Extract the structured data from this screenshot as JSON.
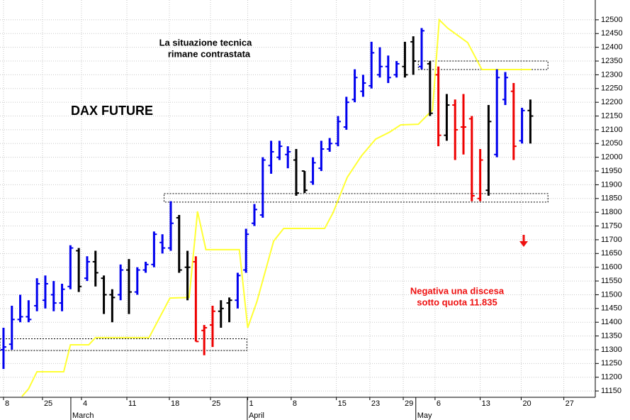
{
  "chart_data": {
    "type": "ohlc",
    "title": "DAX FUTURE",
    "note": [
      "La situazione tecnica",
      "rimane contrastata"
    ],
    "warning": [
      "Negativa una discesa",
      "sotto quota 11.835"
    ],
    "xlim": [
      -0.42,
      70.76
    ],
    "ylim": [
      11127,
      12572
    ],
    "yticks": [
      11150,
      11200,
      11250,
      11300,
      11350,
      11400,
      11450,
      11500,
      11550,
      11600,
      11650,
      11700,
      11750,
      11800,
      11850,
      11900,
      11950,
      12000,
      12050,
      12100,
      12150,
      12200,
      12250,
      12300,
      12350,
      12400,
      12450,
      12500
    ],
    "xticks": [
      {
        "value": 0,
        "label": "8"
      },
      {
        "value": 4.66,
        "label": "25"
      },
      {
        "value": 9.32,
        "label": "4"
      },
      {
        "value": 14.75,
        "label": "11"
      },
      {
        "value": 19.83,
        "label": "18"
      },
      {
        "value": 24.75,
        "label": "25"
      },
      {
        "value": 29.2,
        "label": "1"
      },
      {
        "value": 34.4,
        "label": "8"
      },
      {
        "value": 39.8,
        "label": "15"
      },
      {
        "value": 43.8,
        "label": "23"
      },
      {
        "value": 47.8,
        "label": "29"
      },
      {
        "value": 51.6,
        "label": "6"
      },
      {
        "value": 57,
        "label": "13"
      },
      {
        "value": 61.9,
        "label": "20"
      },
      {
        "value": 67,
        "label": "27"
      }
    ],
    "month_ticks": [
      {
        "value": 8.05,
        "label": "March"
      },
      {
        "value": 29.15,
        "label": "April"
      },
      {
        "value": 49.3,
        "label": "May"
      }
    ],
    "grid": true,
    "open": [
      11300,
      11320,
      11410,
      11420,
      11460,
      11480,
      11500,
      11470,
      11530,
      11660,
      11560,
      11620,
      11560,
      11500,
      11500,
      11590,
      11510,
      11590,
      11610,
      11690,
      11670,
      11780,
      11600,
      11620,
      11370,
      11390,
      11440,
      11470,
      11480,
      11590,
      11760,
      11790,
      11970,
      12000,
      12010,
      11990,
      11950,
      11910,
      11960,
      12030,
      12050,
      12110,
      12210,
      12240,
      12260,
      12300,
      12330,
      12300,
      12330,
      12420,
      12330,
      12340,
      12300,
      12080,
      12190,
      12110,
      12140,
      11850,
      11880,
      12010,
      12210,
      12240,
      12060,
      12170
    ],
    "high": [
      11380,
      11460,
      11500,
      11480,
      11560,
      11570,
      11550,
      11540,
      11680,
      11670,
      11640,
      11660,
      11570,
      11520,
      11610,
      11630,
      11600,
      11620,
      11730,
      11720,
      11840,
      11790,
      11660,
      11640,
      11390,
      11460,
      11480,
      11490,
      11580,
      11740,
      11830,
      12000,
      12060,
      12060,
      12040,
      12030,
      11950,
      12000,
      12060,
      12070,
      12150,
      12220,
      12320,
      12300,
      12420,
      12400,
      12370,
      12350,
      12420,
      12440,
      12470,
      12350,
      12330,
      12230,
      12210,
      12230,
      12150,
      12030,
      12190,
      12320,
      12310,
      12270,
      12180,
      12210
    ],
    "low": [
      11230,
      11300,
      11400,
      11400,
      11440,
      11450,
      11440,
      11440,
      11520,
      11510,
      11550,
      11530,
      11430,
      11400,
      11480,
      11430,
      11500,
      11580,
      11600,
      11650,
      11660,
      11580,
      11480,
      11330,
      11280,
      11310,
      11380,
      11400,
      11450,
      11580,
      11750,
      11780,
      11940,
      11990,
      11960,
      11860,
      11870,
      11900,
      11950,
      12020,
      12040,
      12100,
      12200,
      12220,
      12250,
      12290,
      12270,
      12290,
      12290,
      12300,
      12320,
      12150,
      12040,
      12060,
      11990,
      12010,
      11840,
      11840,
      11860,
      12000,
      12190,
      11990,
      12050,
      12050
    ],
    "close": [
      11310,
      11410,
      11420,
      11410,
      11540,
      11540,
      11470,
      11520,
      11670,
      11530,
      11620,
      11580,
      11500,
      11490,
      11590,
      11510,
      11590,
      11610,
      11720,
      11670,
      11760,
      11590,
      11600,
      11330,
      11380,
      11440,
      11450,
      11480,
      11570,
      11720,
      11810,
      11990,
      12020,
      12040,
      12020,
      11870,
      11880,
      11980,
      12030,
      12050,
      12130,
      12200,
      12290,
      12270,
      12380,
      12330,
      12290,
      12340,
      12300,
      12350,
      12460,
      12160,
      12080,
      12190,
      12100,
      12110,
      11860,
      11990,
      12130,
      12290,
      12290,
      12040,
      12170,
      12150
    ],
    "colors": [
      "#0000ee",
      "#0000ee",
      "#0000ee",
      "#0000ee",
      "#0000ee",
      "#0000ee",
      "#0000ee",
      "#0000ee",
      "#0000ee",
      "#000000",
      "#0000ee",
      "#000000",
      "#000000",
      "#000000",
      "#0000ee",
      "#000000",
      "#0000ee",
      "#0000ee",
      "#0000ee",
      "#0000ee",
      "#0000ee",
      "#000000",
      "#000000",
      "#ee0000",
      "#ee0000",
      "#ee0000",
      "#000000",
      "#000000",
      "#0000ee",
      "#0000ee",
      "#0000ee",
      "#0000ee",
      "#0000ee",
      "#0000ee",
      "#0000ee",
      "#000000",
      "#000000",
      "#0000ee",
      "#0000ee",
      "#0000ee",
      "#0000ee",
      "#0000ee",
      "#0000ee",
      "#0000ee",
      "#0000ee",
      "#0000ee",
      "#0000ee",
      "#0000ee",
      "#000000",
      "#000000",
      "#0000ee",
      "#000000",
      "#ee0000",
      "#000000",
      "#ee0000",
      "#ee0000",
      "#ee0000",
      "#ee0000",
      "#000000",
      "#0000ee",
      "#0000ee",
      "#ee0000",
      "#0000ee",
      "#000000"
    ],
    "stop_line": {
      "color": "#ffff33",
      "x": [
        2.2,
        3,
        4,
        7.2,
        8,
        10.2,
        11,
        17.4,
        19.9,
        22.2,
        23.2,
        24.2,
        28.2,
        29.2,
        30.3,
        32.3,
        33.5,
        38.4,
        39.4,
        41.1,
        42.8,
        44.5,
        46.2,
        47.5,
        49.6,
        51.3,
        52.1,
        53.1,
        55.5,
        57.2,
        63.1
      ],
      "values": [
        11130,
        11158,
        11220,
        11220,
        11318,
        11318,
        11344,
        11344,
        11488,
        11490,
        11803,
        11664,
        11664,
        11380,
        11475,
        11695,
        11741,
        11741,
        11798,
        11927,
        12005,
        12066,
        12092,
        12118,
        12120,
        12172,
        12500,
        12470,
        12417,
        12319,
        12319
      ]
    },
    "zones": [
      {
        "x": [
          -0.42,
          29.1
        ],
        "y": [
          11297,
          11340
        ]
      },
      {
        "x": [
          19.2,
          65.1
        ],
        "y": [
          11837,
          11868
        ]
      },
      {
        "x": [
          49.6,
          65.1
        ],
        "y": [
          12319,
          12350
        ]
      }
    ]
  }
}
